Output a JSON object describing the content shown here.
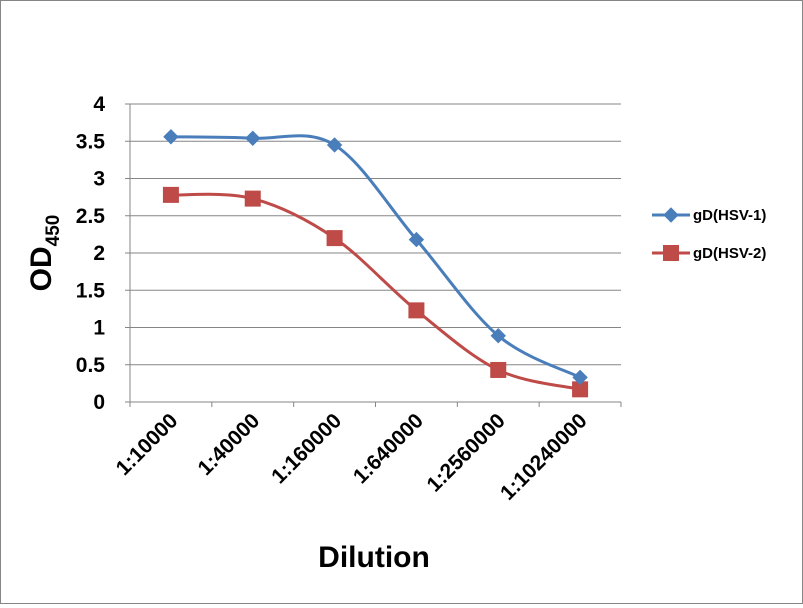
{
  "chart_data": {
    "type": "line",
    "categories": [
      "1:10000",
      "1:40000",
      "1:160000",
      "1:640000",
      "1:2560000",
      "1:10240000"
    ],
    "series": [
      {
        "name": "gD(HSV-1)",
        "color": "#4a7ebb",
        "marker": "diamond",
        "values": [
          3.56,
          3.54,
          3.45,
          2.18,
          0.89,
          0.33
        ]
      },
      {
        "name": "gD(HSV-2)",
        "color": "#be4b48",
        "marker": "square",
        "values": [
          2.78,
          2.73,
          2.2,
          1.23,
          0.43,
          0.17
        ]
      }
    ],
    "xlabel": "Dilution",
    "ylabel": {
      "main": "OD",
      "sub": "450"
    },
    "ylim": [
      0,
      4
    ],
    "yticks": [
      "0",
      "0.5",
      "1",
      "1.5",
      "2",
      "2.5",
      "3",
      "3.5",
      "4"
    ],
    "grid": true,
    "smooth": true,
    "legend_position": "right"
  }
}
